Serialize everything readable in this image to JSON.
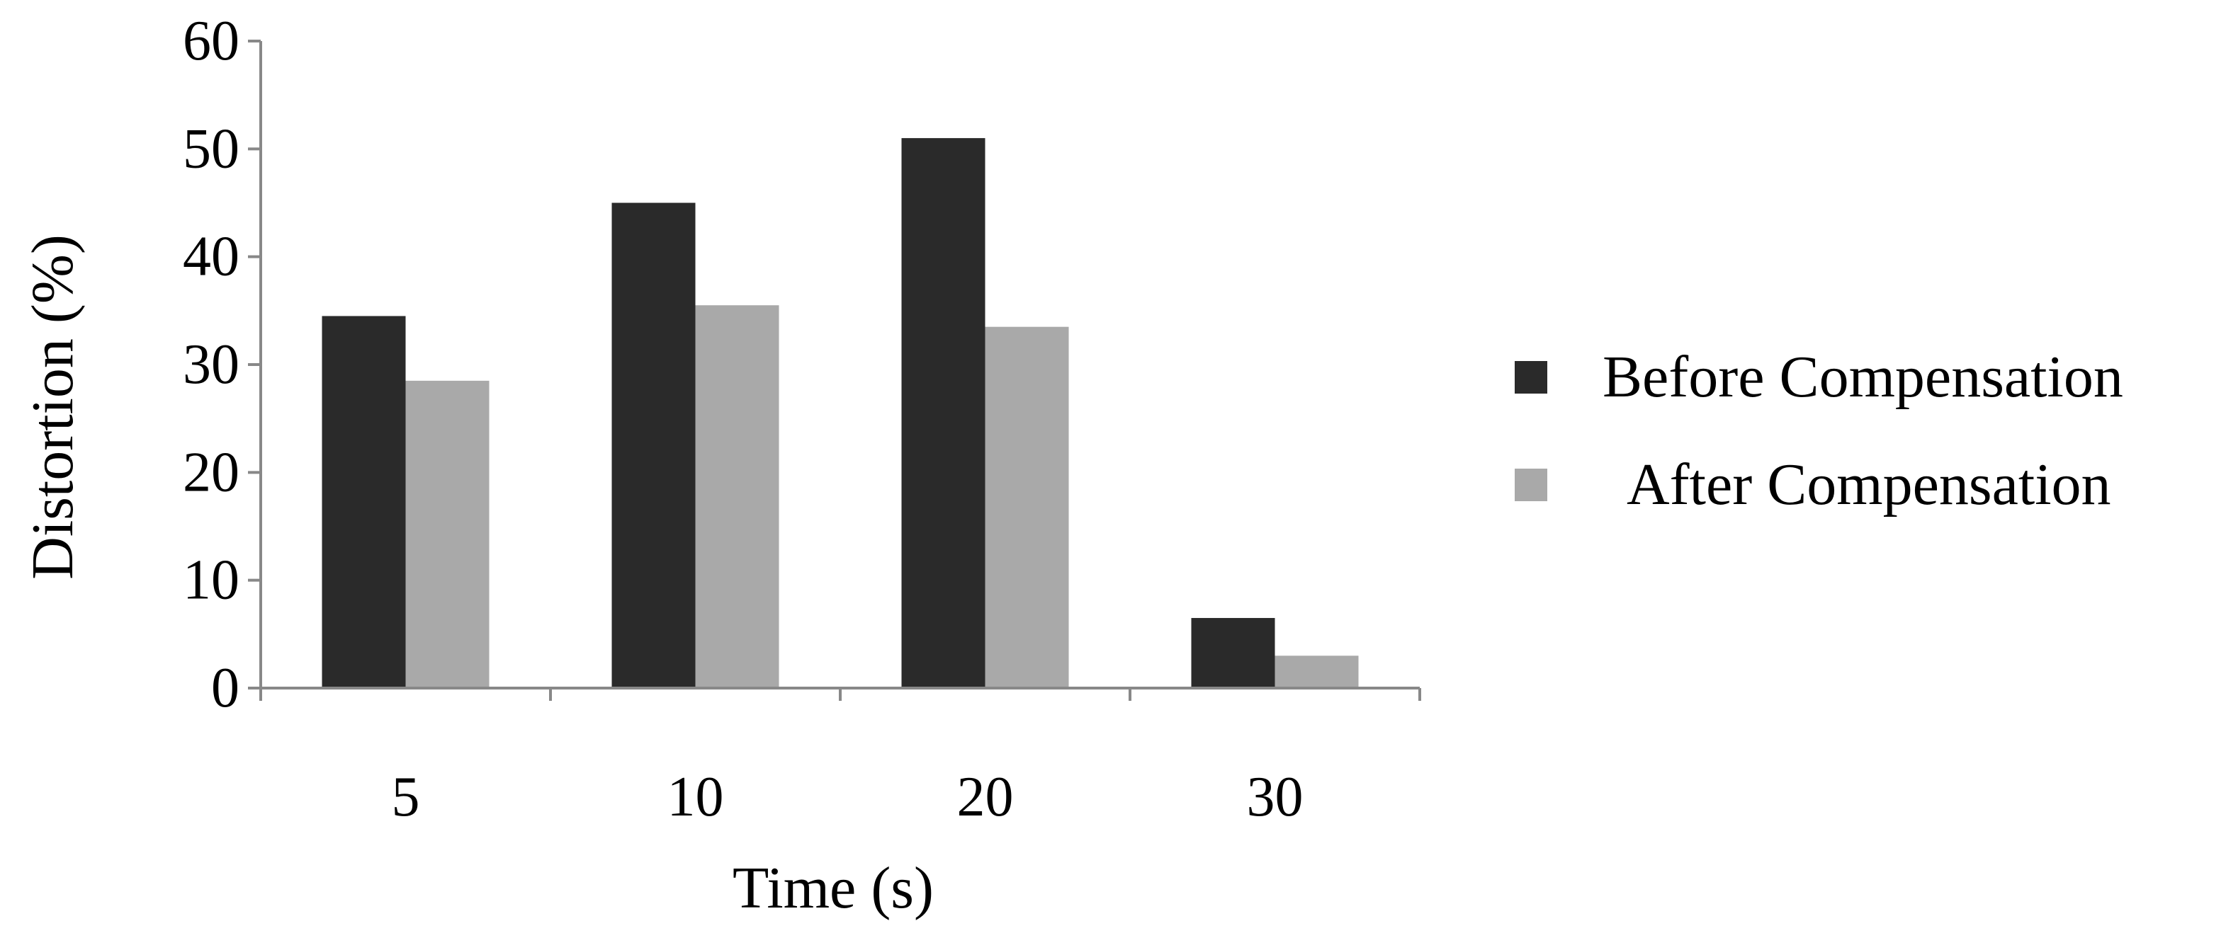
{
  "chart_data": {
    "type": "bar",
    "title": "",
    "xlabel": "Time (s)",
    "ylabel": "Distortion (%)",
    "categories": [
      "5",
      "10",
      "20",
      "30"
    ],
    "series": [
      {
        "name": "Before Compensation",
        "color": "#2a2a2a",
        "values": [
          34.5,
          45,
          51,
          6.5
        ]
      },
      {
        "name": "After Compensation",
        "color": "#a9a9a9",
        "values": [
          28.5,
          35.5,
          33.5,
          3
        ]
      }
    ],
    "ylim": [
      0,
      60
    ],
    "yticks": [
      0,
      10,
      20,
      30,
      40,
      50,
      60
    ],
    "grid": false,
    "legend_position": "right"
  }
}
